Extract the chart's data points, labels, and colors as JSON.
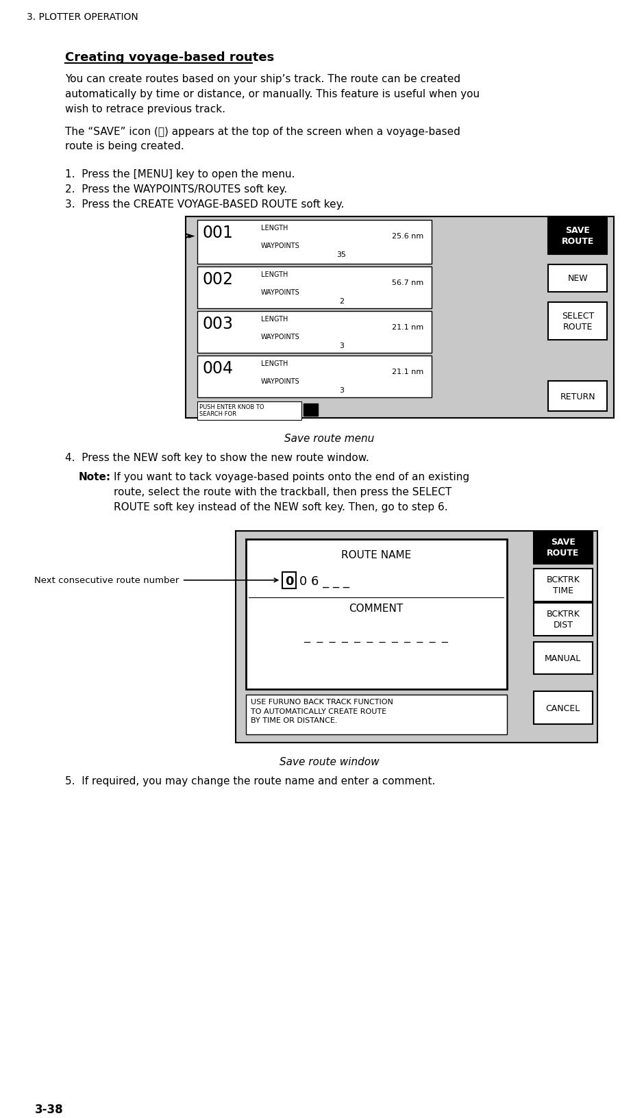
{
  "page_header": "3. PLOTTER OPERATION",
  "page_number": "3-38",
  "section_title": "Creating voyage-based routes",
  "para1": "You can create routes based on your ship’s track. The route can be created automatically by time or distance, or manually. This feature is useful when you wish to retrace previous track.",
  "para2": "The “SAVE” icon (Ⓢ) appears at the top of the screen when a voyage-based route is being created.",
  "steps_1_3": [
    "Press the [MENU] key to open the menu.",
    "Press the WAYPOINTS/ROUTES soft key.",
    "Press the CREATE VOYAGE-BASED ROUTE soft key."
  ],
  "menu_caption": "Save route menu",
  "menu_routes": [
    {
      "num": "001",
      "length": "25.6 nm",
      "waypoints": "35"
    },
    {
      "num": "002",
      "length": "56.7 nm",
      "waypoints": "2"
    },
    {
      "num": "003",
      "length": "21.1 nm",
      "waypoints": "3"
    },
    {
      "num": "004",
      "length": "21.1 nm",
      "waypoints": "3"
    }
  ],
  "menu_softkeys": [
    "SAVE\nROUTE",
    "NEW",
    "SELECT\nROUTE",
    "RETURN"
  ],
  "menu_bottom_text": "PUSH ENTER KNOB TO\nSEARCH FOR",
  "step4_text": "Press the NEW soft key to show the new route window.",
  "note_text": "If you want to tack voyage-based points onto the end of an existing route, select the route with the trackball, then press the SELECT ROUTE soft key instead of the NEW soft key. Then, go to step 6.",
  "window_caption": "Save route window",
  "window_softkeys": [
    "SAVE\nROUTE",
    "BCKTRK\nTIME",
    "BCKTRK\nDIST",
    "MANUAL",
    "CANCEL"
  ],
  "route_name_label": "ROUTE NAME",
  "route_name_value": "0 0 6 _ _ _",
  "comment_label": "COMMENT",
  "comment_dashes": "_ _ _ _ _ _ _ _ _ _ _ _",
  "info_text": "USE FURUNO BACK TRACK FUNCTION\nTO AUTOMATICALLY CREATE ROUTE\nBY TIME OR DISTANCE.",
  "next_consec_label": "Next consecutive route number",
  "step5_text": "If required, you may change the route name and enter a comment.",
  "bg_color": "#ffffff",
  "menu_bg": "#c8c8c8",
  "box_bg": "#ffffff",
  "black": "#000000",
  "softkey_black_bg": "#000000",
  "softkey_white_text": "#ffffff"
}
